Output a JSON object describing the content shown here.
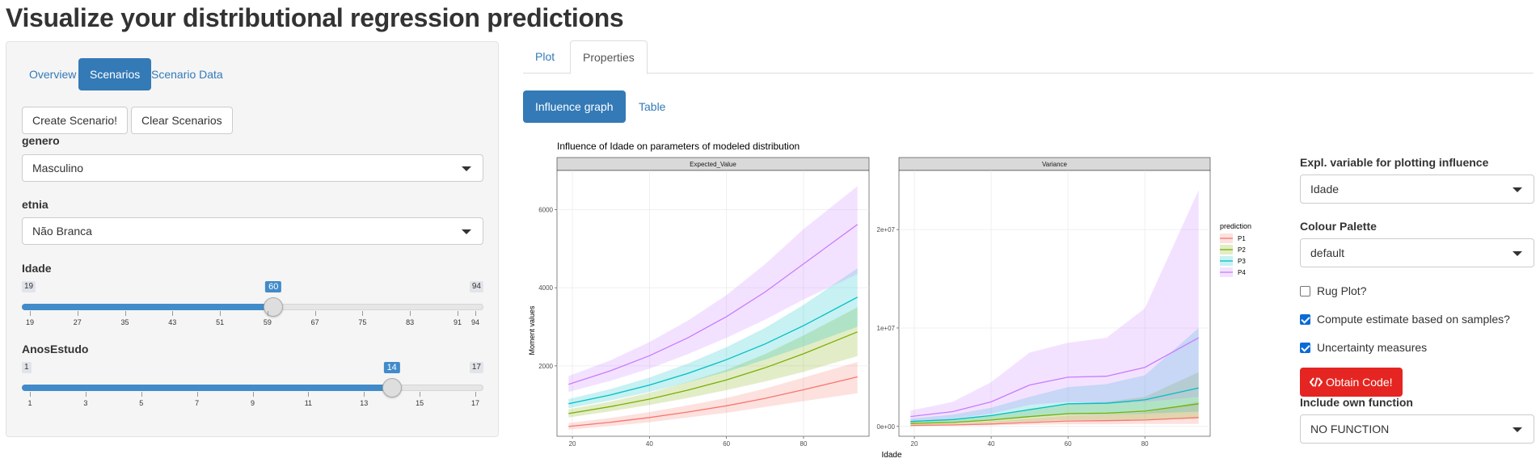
{
  "page_title": "Visualize your distributional regression predictions",
  "left_tabs": [
    {
      "label": "Overview"
    },
    {
      "label": "Scenarios"
    },
    {
      "label": "Scenario Data"
    }
  ],
  "buttons": {
    "create": "Create Scenario!",
    "clear": "Clear Scenarios"
  },
  "genero": {
    "label": "genero",
    "value": "Masculino"
  },
  "etnia": {
    "label": "etnia",
    "value": "Não Branca"
  },
  "idade": {
    "label": "Idade",
    "min": "19",
    "max": "94",
    "value": "60",
    "ticks": [
      "19",
      "27",
      "35",
      "43",
      "51",
      "59",
      "67",
      "75",
      "83",
      "91",
      "94"
    ]
  },
  "anosestudo": {
    "label": "AnosEstudo",
    "min": "1",
    "max": "17",
    "value": "14",
    "ticks": [
      "1",
      "3",
      "5",
      "7",
      "9",
      "11",
      "13",
      "15",
      "17"
    ]
  },
  "main_tabs": [
    {
      "label": "Plot"
    },
    {
      "label": "Properties"
    }
  ],
  "sub_tabs": [
    {
      "label": "Influence graph"
    },
    {
      "label": "Table"
    }
  ],
  "right_panel": {
    "expl_label": "Expl. variable for plotting influence",
    "expl_value": "Idade",
    "palette_label": "Colour Palette",
    "palette_value": "default",
    "rug_label": "Rug Plot?",
    "samples_label": "Compute estimate based on samples?",
    "uncertainty_label": "Uncertainty measures",
    "obtain_code": "Obtain Code!",
    "own_function_label": "Include own function",
    "own_function_value": "NO FUNCTION"
  },
  "icons": {
    "code": "code-icon",
    "caret": "caret-down-icon"
  },
  "colors": {
    "P1": "#F8766D",
    "P2": "#7CAE00",
    "P3": "#00BFC4",
    "P4": "#C77CFF",
    "accent": "#337ab7",
    "danger": "#e52521"
  },
  "chart_data": {
    "type": "line",
    "title": "Influence of Idade on parameters of modeled distribution",
    "xlabel": "Idade",
    "ylabel": "Moment values",
    "legend_title": "prediction",
    "legend_position": "right",
    "grid": true,
    "x": [
      19,
      30,
      40,
      50,
      60,
      70,
      80,
      94
    ],
    "panels": [
      {
        "name": "Expected_Value",
        "xlim": [
          16,
          97
        ],
        "ylim": [
          200,
          7000
        ],
        "xticks": [
          "20",
          "40",
          "60",
          "80"
        ],
        "yticks": [
          "2000",
          "4000",
          "6000"
        ],
        "series": [
          {
            "name": "P1",
            "values": [
              450,
              560,
              680,
              820,
              980,
              1170,
              1390,
              1720
            ],
            "lower": [
              370,
              460,
              560,
              680,
              800,
              950,
              1100,
              1300
            ],
            "upper": [
              540,
              670,
              820,
              990,
              1180,
              1420,
              1700,
              2100
            ]
          },
          {
            "name": "P2",
            "values": [
              780,
              960,
              1150,
              1380,
              1640,
              1950,
              2310,
              2870
            ],
            "lower": [
              680,
              840,
              1000,
              1180,
              1380,
              1600,
              1850,
              2250
            ],
            "upper": [
              890,
              1090,
              1310,
              1590,
              1900,
              2300,
              2780,
              3500
            ]
          },
          {
            "name": "P3",
            "values": [
              1030,
              1260,
              1510,
              1810,
              2160,
              2560,
              3030,
              3760
            ],
            "lower": [
              920,
              1120,
              1330,
              1580,
              1850,
              2160,
              2500,
              3000
            ],
            "upper": [
              1150,
              1410,
              1700,
              2060,
              2480,
              2970,
              3560,
              4500
            ]
          },
          {
            "name": "P4",
            "values": [
              1530,
              1880,
              2260,
              2720,
              3260,
              3890,
              4610,
              5620
            ],
            "lower": [
              1330,
              1620,
              1930,
              2300,
              2720,
              3180,
              3700,
              4350
            ],
            "upper": [
              1740,
              2150,
              2610,
              3160,
              3810,
              4600,
              5500,
              6600
            ]
          }
        ]
      },
      {
        "name": "Variance",
        "xlim": [
          16,
          97
        ],
        "ylim": [
          -1000000,
          26000000
        ],
        "xticks": [
          "20",
          "40",
          "60",
          "80"
        ],
        "yticks": [
          "0e+00",
          "1e+07",
          "2e+07"
        ],
        "series": [
          {
            "name": "P1",
            "values": [
              100000,
              150000,
              250000,
              400000,
              550000,
              580000,
              650000,
              900000
            ],
            "lower": [
              50000,
              80000,
              120000,
              180000,
              220000,
              220000,
              250000,
              250000
            ],
            "upper": [
              200000,
              300000,
              500000,
              800000,
              1100000,
              1200000,
              1400000,
              2500000
            ]
          },
          {
            "name": "P2",
            "values": [
              300000,
              400000,
              650000,
              1000000,
              1300000,
              1350000,
              1550000,
              2300000
            ],
            "lower": [
              150000,
              220000,
              350000,
              500000,
              650000,
              650000,
              700000,
              800000
            ],
            "upper": [
              500000,
              700000,
              1100000,
              1800000,
              2300000,
              2500000,
              3000000,
              5500000
            ]
          },
          {
            "name": "P3",
            "values": [
              500000,
              700000,
              1100000,
              1700000,
              2300000,
              2350000,
              2700000,
              3900000
            ],
            "lower": [
              250000,
              380000,
              600000,
              900000,
              1200000,
              1200000,
              1300000,
              1500000
            ],
            "upper": [
              800000,
              1200000,
              1900000,
              3000000,
              4000000,
              4300000,
              5200000,
              10000000
            ]
          },
          {
            "name": "P4",
            "values": [
              1000000,
              1500000,
              2500000,
              4200000,
              5000000,
              5100000,
              6000000,
              9000000
            ],
            "lower": [
              500000,
              800000,
              1300000,
              2200000,
              2500000,
              2300000,
              2500000,
              3000000
            ],
            "upper": [
              1600000,
              2500000,
              4500000,
              7500000,
              8500000,
              9000000,
              12000000,
              24000000
            ]
          }
        ]
      }
    ]
  }
}
